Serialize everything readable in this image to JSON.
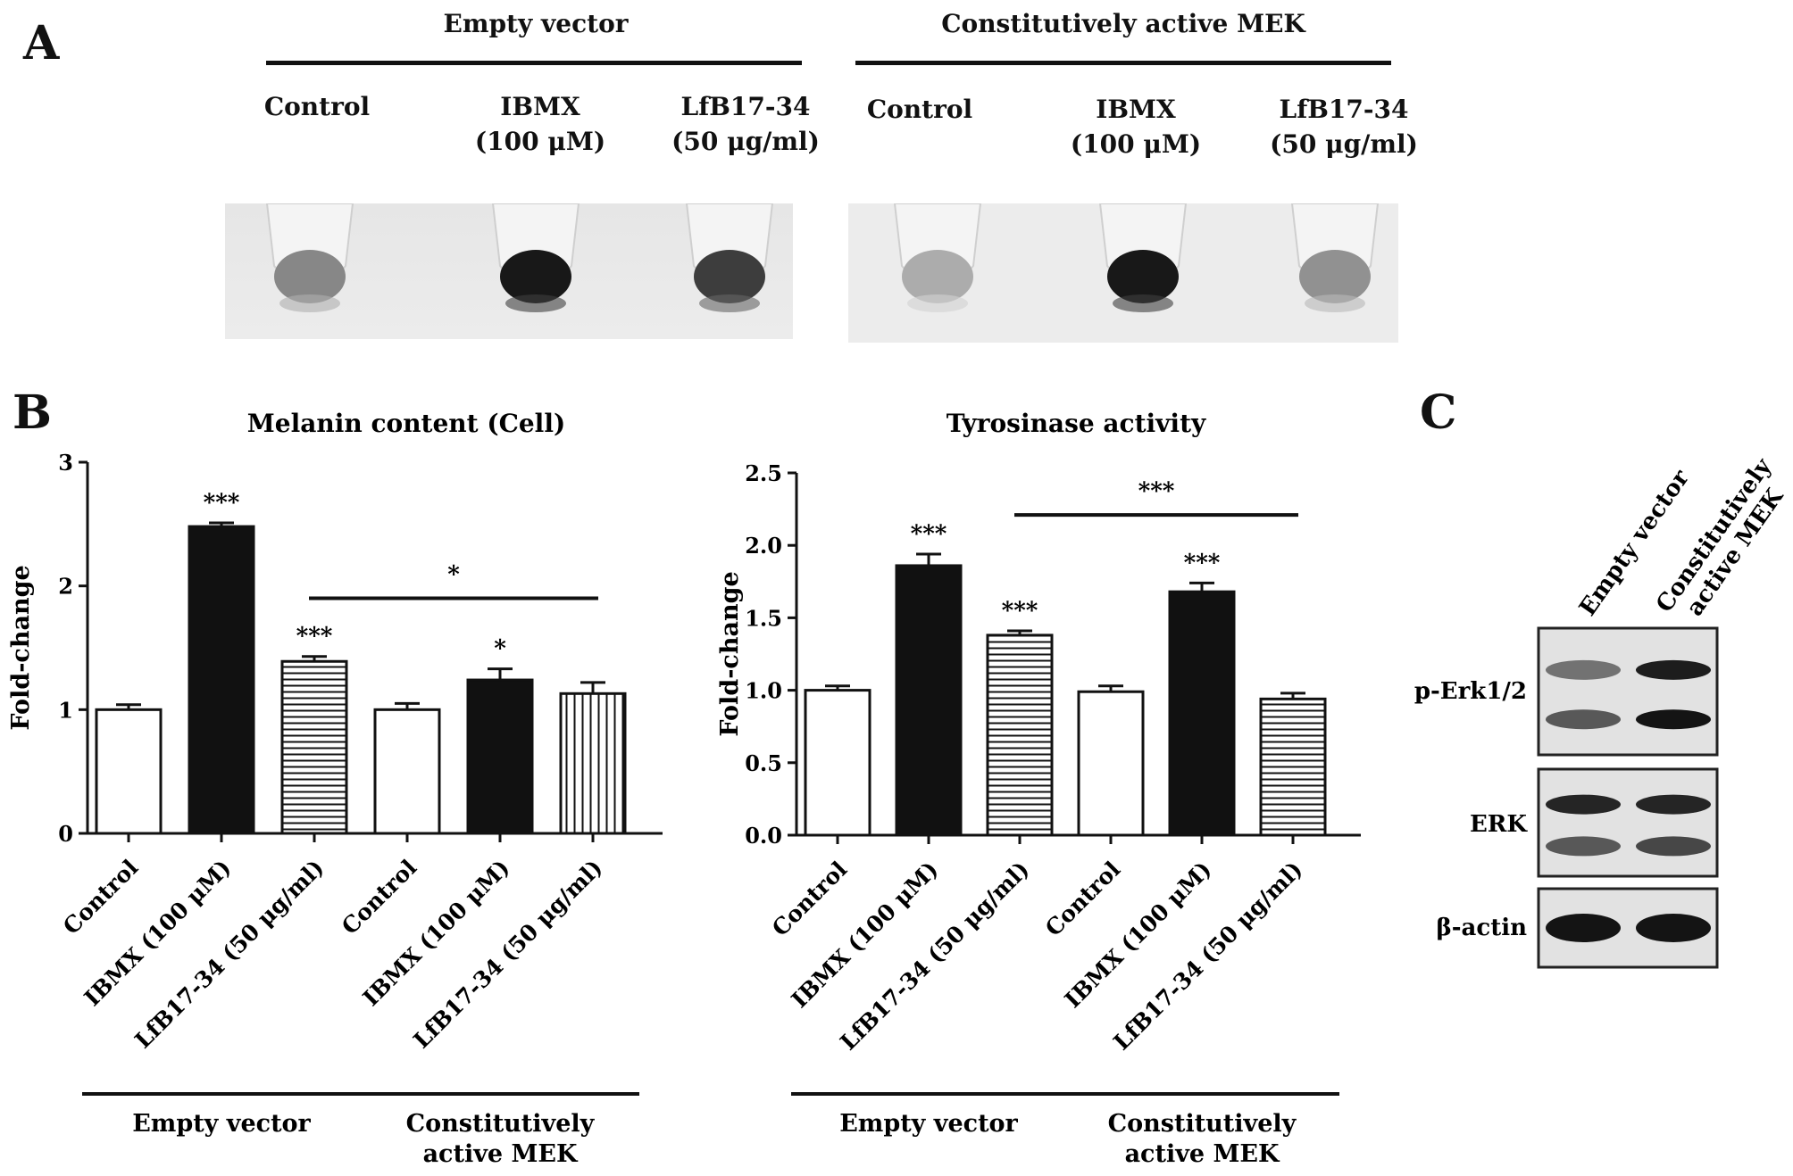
{
  "panels": {
    "A": "A",
    "B": "B",
    "C": "C"
  },
  "panel_a": {
    "groups": [
      {
        "title": "Empty vector",
        "lanes": [
          {
            "line1": "Control",
            "line2": ""
          },
          {
            "line1": "IBMX",
            "line2": "(100 μM)"
          },
          {
            "line1": "LfB17-34",
            "line2": "(50 μg/ml)"
          }
        ],
        "pellet_intensity": [
          0.35,
          0.95,
          0.75
        ]
      },
      {
        "title": "Constitutively active  MEK",
        "lanes": [
          {
            "line1": "Control",
            "line2": ""
          },
          {
            "line1": "IBMX",
            "line2": "(100 μM)"
          },
          {
            "line1": "LfB17-34",
            "line2": "(50 μg/ml)"
          }
        ],
        "pellet_intensity": [
          0.15,
          0.95,
          0.3
        ]
      }
    ]
  },
  "chart_data": [
    {
      "type": "bar",
      "title": "Melanin content (Cell)",
      "ylabel": "Fold-change",
      "xlabel": "",
      "ylim": [
        0,
        3
      ],
      "yticks": [
        "0",
        "1",
        "2",
        "3"
      ],
      "categories": [
        "Control",
        "IBMX (100 μM)",
        "LfB17-34 (50 μg/ml)",
        "Control",
        "IBMX (100 μM)",
        "LfB17-34 (50 μg/ml)"
      ],
      "values": [
        1.0,
        2.48,
        1.39,
        1.0,
        1.24,
        1.13
      ],
      "errors": [
        0.04,
        0.03,
        0.04,
        0.05,
        0.09,
        0.09
      ],
      "fills": [
        "white",
        "black",
        "hstripe",
        "white",
        "black",
        "vstripe"
      ],
      "significance": [
        "",
        "***",
        "***",
        "",
        "*",
        ""
      ],
      "comparison": {
        "from": 2,
        "to": 5,
        "label": "*",
        "y": 1.9
      },
      "group_labels": [
        {
          "line1": "Empty vector",
          "line2": ""
        },
        {
          "line1": "Constitutively",
          "line2": "active  MEK"
        }
      ],
      "grid": false
    },
    {
      "type": "bar",
      "title": "Tyrosinase activity",
      "ylabel": "Fold-change",
      "xlabel": "",
      "ylim": [
        0,
        2.5
      ],
      "yticks": [
        "0.0",
        "0.5",
        "1.0",
        "1.5",
        "2.0",
        "2.5"
      ],
      "categories": [
        "Control",
        "IBMX (100 μM)",
        "LfB17-34 (50 μg/ml)",
        "Control",
        "IBMX (100 μM)",
        "LfB17-34 (50 μg/ml)"
      ],
      "values": [
        1.0,
        1.86,
        1.38,
        0.99,
        1.68,
        0.94
      ],
      "errors": [
        0.03,
        0.08,
        0.03,
        0.04,
        0.06,
        0.04
      ],
      "fills": [
        "white",
        "black",
        "hstripe",
        "white",
        "black",
        "hstripe"
      ],
      "significance": [
        "",
        "***",
        "***",
        "",
        "***",
        ""
      ],
      "comparison": {
        "from": 2,
        "to": 5,
        "label": "***",
        "y": 2.21
      },
      "group_labels": [
        {
          "line1": "Empty vector",
          "line2": ""
        },
        {
          "line1": "Constitutively",
          "line2": "active  MEK"
        }
      ],
      "grid": false
    }
  ],
  "panel_c": {
    "columns": [
      {
        "line1": "Empty vector",
        "line2": ""
      },
      {
        "line1": "Constitutively",
        "line2": "active  MEK"
      }
    ],
    "blots": [
      {
        "label": "p-Erk1/2",
        "bands": [
          [
            0.45,
            0.95
          ],
          [
            0.6,
            1.0
          ]
        ]
      },
      {
        "label": "ERK",
        "bands": [
          [
            0.9,
            0.9
          ],
          [
            0.6,
            0.7
          ]
        ]
      },
      {
        "label": "β-actin",
        "bands": [
          [
            1.0,
            1.0
          ]
        ]
      }
    ]
  }
}
